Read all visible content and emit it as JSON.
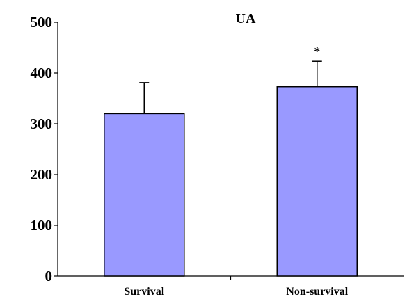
{
  "chart_data": {
    "type": "bar",
    "title": "UA",
    "categories": [
      "Survival",
      "Non-survival"
    ],
    "values": [
      320,
      373
    ],
    "error_upper": [
      381,
      423
    ],
    "annotations": [
      "",
      "*"
    ],
    "ylim": [
      0,
      500
    ],
    "yticks": [
      0,
      100,
      200,
      300,
      400,
      500
    ],
    "xlabel": "",
    "ylabel": "",
    "grid": false,
    "bar_color": "#9999FF"
  }
}
